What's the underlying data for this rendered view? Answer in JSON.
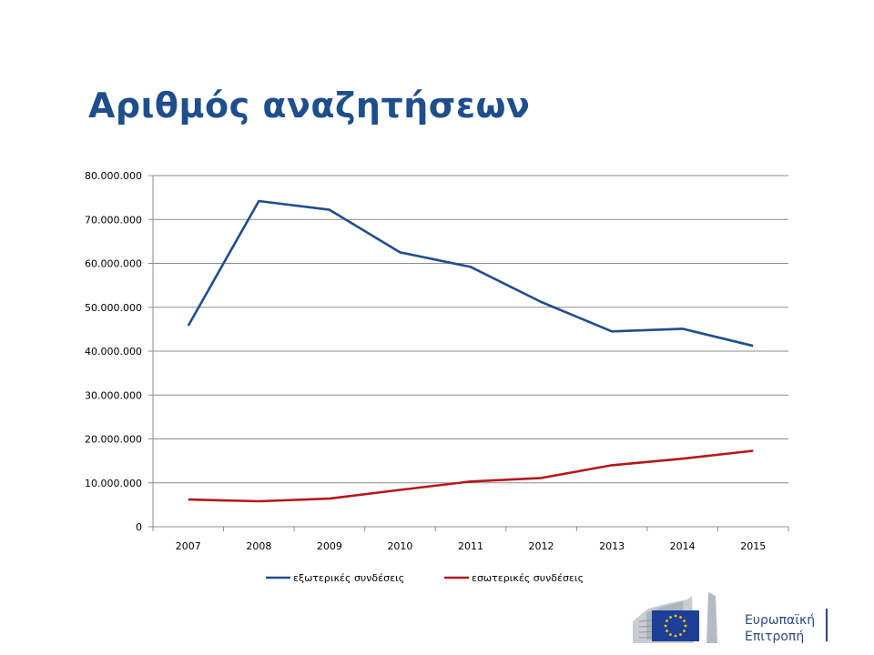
{
  "slide": {
    "title": "Αριθμός αναζητήσεων"
  },
  "chart_data": {
    "type": "line",
    "title": "Αριθμός αναζητήσεων",
    "categories": [
      "2007",
      "2008",
      "2009",
      "2010",
      "2011",
      "2012",
      "2013",
      "2014",
      "2015"
    ],
    "y_ticks": [
      "0",
      "10.000.000",
      "20.000.000",
      "30.000.000",
      "40.000.000",
      "50.000.000",
      "60.000.000",
      "70.000.000",
      "80.000.000"
    ],
    "ylim": [
      0,
      80000000
    ],
    "grid": true,
    "legend_position": "bottom",
    "series": [
      {
        "name": "εξωτερικές συνδέσεις",
        "color": "#1f4e8c",
        "values": [
          45800000,
          74200000,
          72200000,
          62500000,
          59200000,
          51200000,
          44500000,
          45100000,
          41200000
        ]
      },
      {
        "name": "εσωτερικές συνδέσεις",
        "color": "#b3191b",
        "values": [
          6200000,
          5800000,
          6400000,
          8400000,
          10300000,
          11100000,
          14000000,
          15500000,
          17300000
        ]
      }
    ]
  },
  "logo": {
    "line1": "Ευρωπαϊκή",
    "line2": "Επιτροπή",
    "flag_color": "#1d3f9a",
    "star_color": "#ffcc00"
  }
}
